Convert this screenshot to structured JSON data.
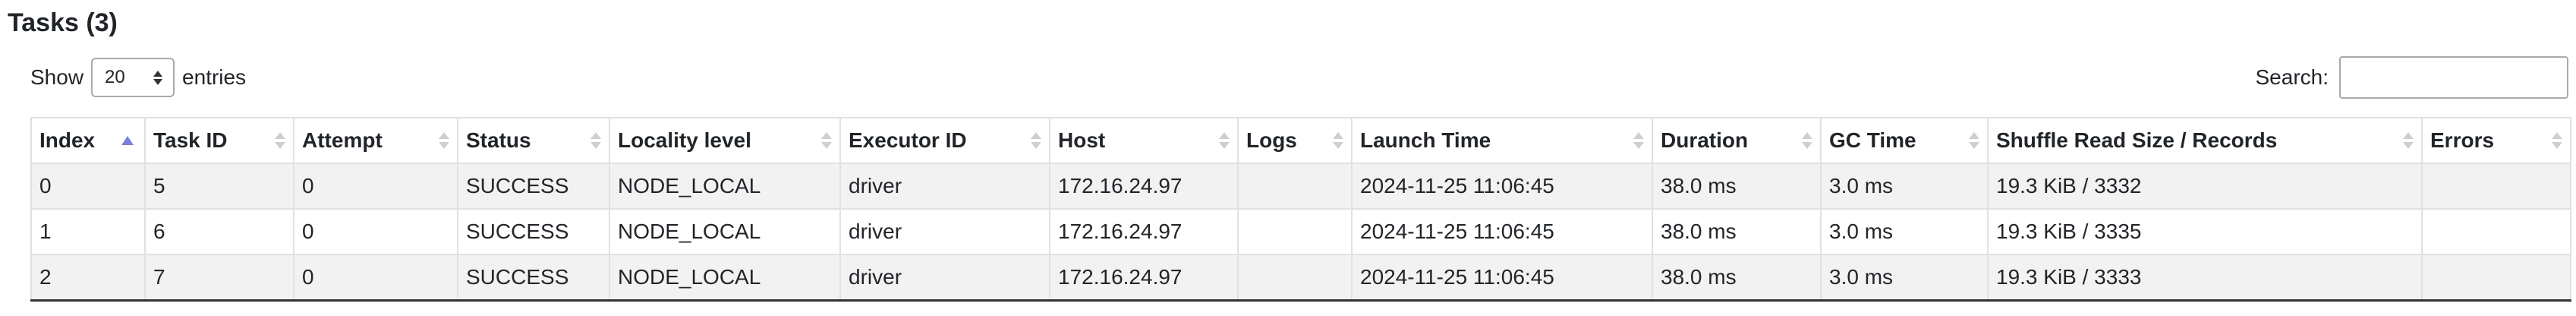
{
  "title": "Tasks (3)",
  "length": {
    "show_label": "Show",
    "selected": "20",
    "entries_label": "entries"
  },
  "search": {
    "label": "Search:",
    "value": ""
  },
  "table": {
    "columns": [
      "Index",
      "Task ID",
      "Attempt",
      "Status",
      "Locality level",
      "Executor ID",
      "Host",
      "Logs",
      "Launch Time",
      "Duration",
      "GC Time",
      "Shuffle Read Size / Records",
      "Errors"
    ],
    "sorted_column": "Index",
    "sort_direction": "ascending",
    "rows": [
      [
        "0",
        "5",
        "0",
        "SUCCESS",
        "NODE_LOCAL",
        "driver",
        "172.16.24.97",
        "",
        "2024-11-25 11:06:45",
        "38.0 ms",
        "3.0 ms",
        "19.3 KiB / 3332",
        ""
      ],
      [
        "1",
        "6",
        "0",
        "SUCCESS",
        "NODE_LOCAL",
        "driver",
        "172.16.24.97",
        "",
        "2024-11-25 11:06:45",
        "38.0 ms",
        "3.0 ms",
        "19.3 KiB / 3335",
        ""
      ],
      [
        "2",
        "7",
        "0",
        "SUCCESS",
        "NODE_LOCAL",
        "driver",
        "172.16.24.97",
        "",
        "2024-11-25 11:06:45",
        "38.0 ms",
        "3.0 ms",
        "19.3 KiB / 3333",
        ""
      ]
    ]
  },
  "colors": {
    "stripe": "#f2f2f2",
    "border": "#dee2e6",
    "sort_active": "#7b7fd8"
  }
}
